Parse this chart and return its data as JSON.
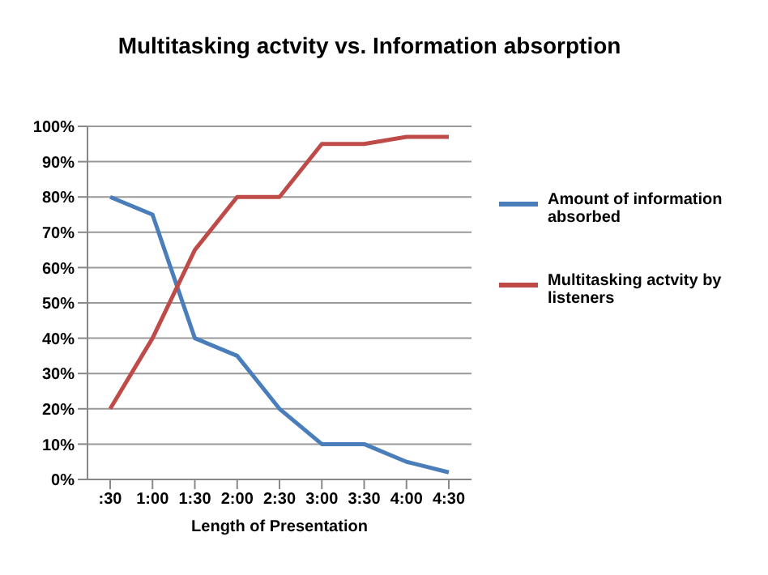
{
  "chart_data": {
    "type": "line",
    "title": "Multitasking actvity vs. Information absorption",
    "xlabel": "Length of Presentation",
    "categories": [
      ":30",
      "1:00",
      "1:30",
      "2:00",
      "2:30",
      "3:00",
      "3:30",
      "4:00",
      "4:30"
    ],
    "series": [
      {
        "name": "Amount of information absorbed",
        "color": "#4a7ebb",
        "values": [
          80,
          75,
          40,
          35,
          20,
          10,
          10,
          5,
          2
        ]
      },
      {
        "name": "Multitasking actvity by listeners",
        "color": "#be4b48",
        "values": [
          20,
          40,
          65,
          80,
          80,
          95,
          95,
          97,
          97
        ]
      }
    ],
    "ylim": [
      0,
      100
    ],
    "yticks": [
      {
        "value": 0,
        "label": "0%"
      },
      {
        "value": 10,
        "label": "10%"
      },
      {
        "value": 20,
        "label": "20%"
      },
      {
        "value": 30,
        "label": "30%"
      },
      {
        "value": 40,
        "label": "40%"
      },
      {
        "value": 50,
        "label": "50%"
      },
      {
        "value": 60,
        "label": "60%"
      },
      {
        "value": 70,
        "label": "70%"
      },
      {
        "value": 80,
        "label": "80%"
      },
      {
        "value": 90,
        "label": "90%"
      },
      {
        "value": 100,
        "label": "100%"
      }
    ],
    "grid": "y",
    "legend": "right",
    "marker": "none",
    "line_style": "solid"
  }
}
